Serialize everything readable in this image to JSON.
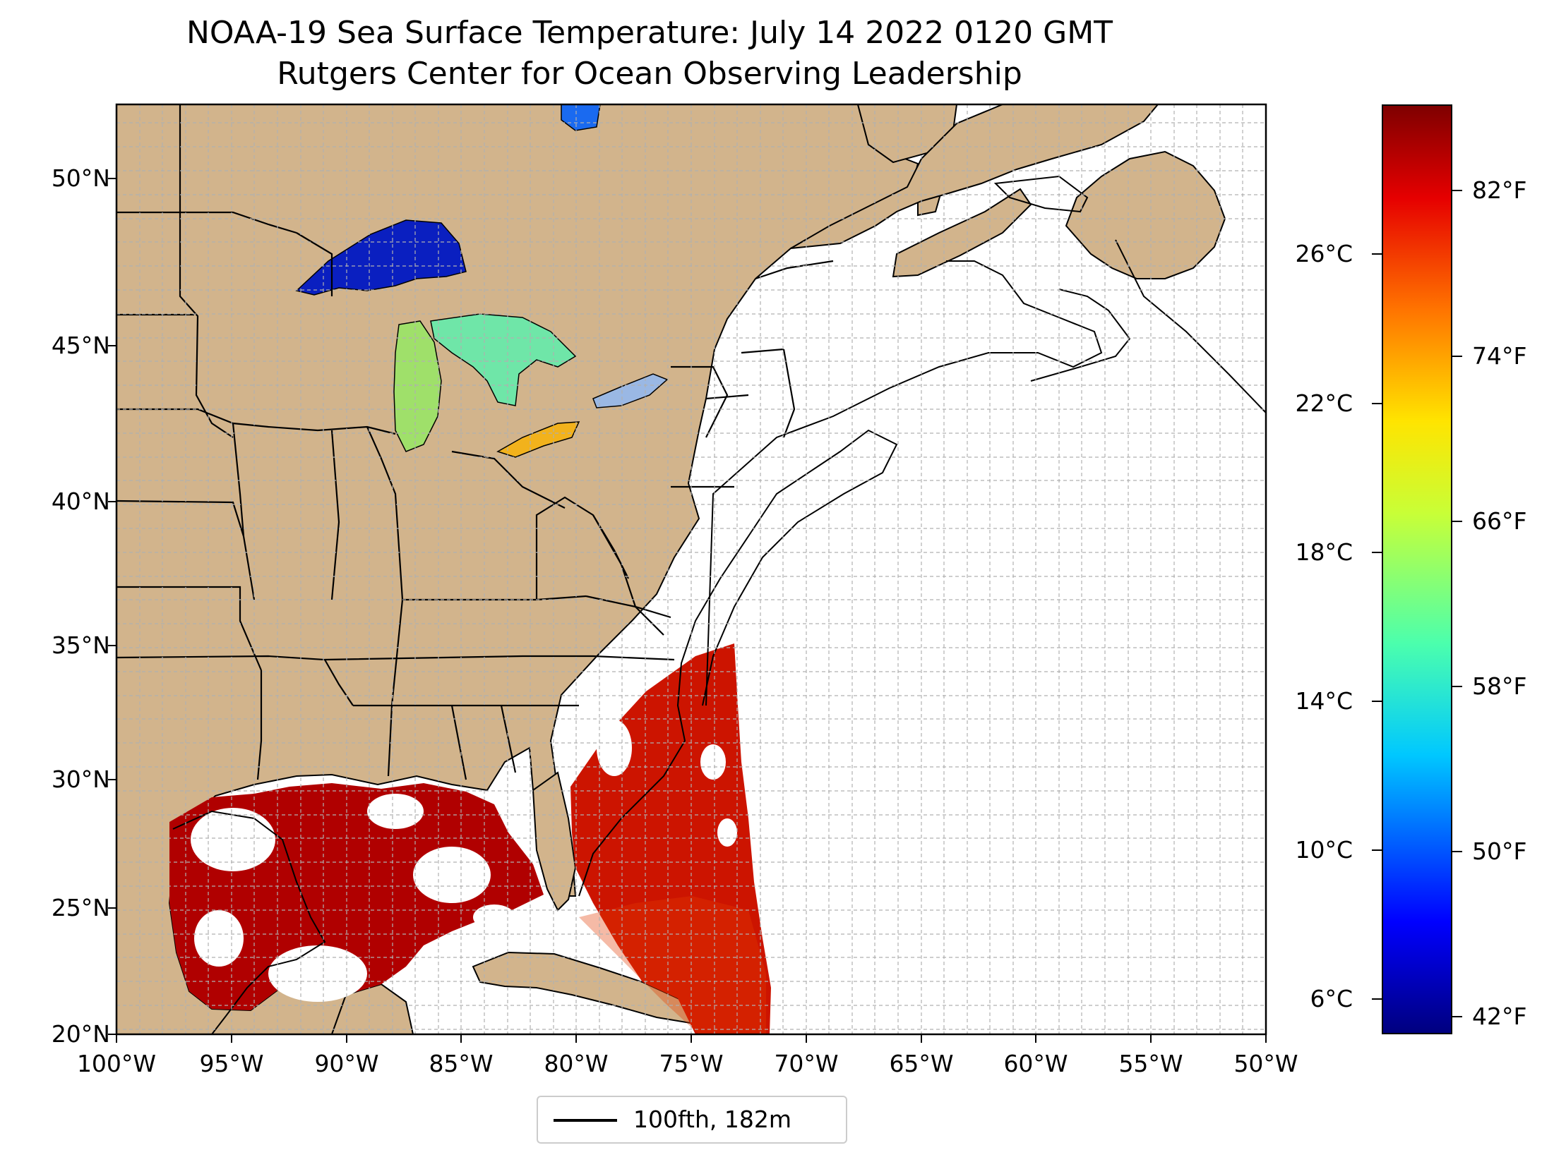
{
  "title": {
    "line1": "NOAA-19 Sea Surface Temperature: July 14 2022 0120 GMT",
    "line2": "Rutgers Center for Ocean Observing Leadership"
  },
  "map": {
    "lat_ticks": [
      "50°N",
      "45°N",
      "40°N",
      "35°N",
      "30°N",
      "25°N",
      "20°N"
    ],
    "lon_ticks": [
      "100°W",
      "95°W",
      "90°W",
      "85°W",
      "80°W",
      "75°W",
      "70°W",
      "65°W",
      "60°W",
      "55°W",
      "50°W"
    ],
    "extent": {
      "lon_min": -100,
      "lon_max": -50,
      "lat_min": 20,
      "lat_max": 52.2
    },
    "colors": {
      "land": "#d2b48c",
      "lakes": "#9ab8e4",
      "ocean": "#ffffff",
      "gridlines": "#b0b0b0"
    }
  },
  "colorbar": {
    "celsius_ticks": [
      "26°C",
      "22°C",
      "18°C",
      "14°C",
      "10°C",
      "6°C"
    ],
    "fahrenheit_ticks": [
      "82°F",
      "74°F",
      "66°F",
      "58°F",
      "50°F",
      "42°F"
    ],
    "colormap": "jet"
  },
  "legend": {
    "label": "100fth, 182m"
  }
}
